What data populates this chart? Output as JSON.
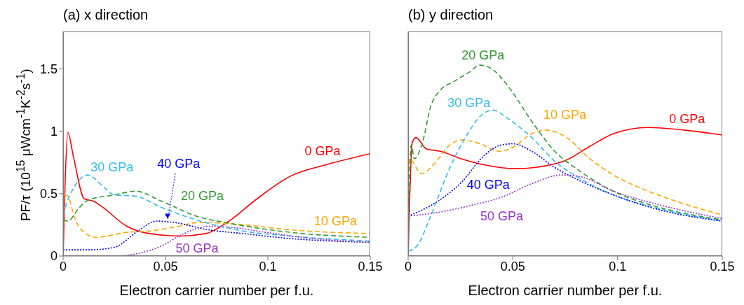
{
  "chart_data": [
    {
      "type": "line",
      "title": "(a) x direction",
      "xlabel": "Electron carrier number per f.u.",
      "ylabel": "PF/τ (10$^{15}$ μWcm$^{-1}$K$^{-2}$s$^{-1}$)",
      "xlim": [
        0,
        0.15
      ],
      "ylim": [
        0,
        1.8
      ],
      "xticks": [
        0,
        0.05,
        0.1,
        0.15
      ],
      "yticks": [
        0,
        0.5,
        1,
        1.5
      ],
      "marker": "none",
      "series": [
        {
          "name": "0 GPa",
          "color": "#ff0000",
          "line_style": "solid",
          "x": [
            0,
            0.001,
            0.0023,
            0.005,
            0.0103,
            0.0148,
            0.0194,
            0.031,
            0.042,
            0.057,
            0.0696,
            0.081,
            0.094,
            0.111,
            0.128,
            0.15
          ],
          "values": [
            0,
            0.6,
            0.99,
            0.8,
            0.46,
            0.44,
            0.39,
            0.24,
            0.18,
            0.16,
            0.18,
            0.28,
            0.45,
            0.64,
            0.73,
            0.82
          ]
        },
        {
          "name": "10 GPa",
          "color": "#ffa500",
          "line_style": "dashed",
          "x": [
            0,
            0.0005,
            0.0023,
            0.0057,
            0.0103,
            0.016,
            0.031,
            0.042,
            0.054,
            0.067,
            0.088,
            0.111,
            0.15
          ],
          "values": [
            0,
            0.49,
            0.48,
            0.3,
            0.19,
            0.15,
            0.19,
            0.2,
            0.23,
            0.27,
            0.25,
            0.21,
            0.18
          ]
        },
        {
          "name": "20 GPa",
          "color": "#339933",
          "line_style": "dashed",
          "x": [
            0,
            0.0023,
            0.008,
            0.0126,
            0.025,
            0.0354,
            0.048,
            0.065,
            0.082,
            0.111,
            0.15
          ],
          "values": [
            0.29,
            0.28,
            0.39,
            0.45,
            0.49,
            0.52,
            0.44,
            0.32,
            0.26,
            0.19,
            0.15
          ]
        },
        {
          "name": "30 GPa",
          "color": "#33bbee",
          "line_style": "dashed",
          "x": [
            0,
            0.0023,
            0.0057,
            0.012,
            0.0194,
            0.025,
            0.0354,
            0.048,
            0.065,
            0.088,
            0.111,
            0.15
          ],
          "values": [
            0.33,
            0.45,
            0.56,
            0.65,
            0.56,
            0.49,
            0.48,
            0.39,
            0.29,
            0.2,
            0.16,
            0.12
          ]
        },
        {
          "name": "40 GPa",
          "color": "#0000ee",
          "line_style": "dotted",
          "x": [
            0,
            0.0137,
            0.025,
            0.0365,
            0.0457,
            0.0537,
            0.071,
            0.088,
            0.111,
            0.15
          ],
          "values": [
            0.05,
            0.05,
            0.07,
            0.2,
            0.28,
            0.27,
            0.21,
            0.18,
            0.14,
            0.11
          ]
        },
        {
          "name": "50 GPa",
          "color": "#9933cc",
          "line_style": "dotted",
          "x": [
            0,
            0.025,
            0.0365,
            0.048,
            0.059,
            0.072,
            0.082,
            0.099,
            0.122,
            0.15
          ],
          "values": [
            0,
            0,
            0.02,
            0.08,
            0.18,
            0.24,
            0.23,
            0.19,
            0.14,
            0.11
          ]
        }
      ]
    },
    {
      "type": "line",
      "title": "(b) y direction",
      "xlabel": "Electron carrier number per f.u.",
      "xlim": [
        0,
        0.15
      ],
      "ylim": [
        0,
        1.8
      ],
      "xticks": [
        0,
        0.05,
        0.1,
        0.15
      ],
      "yticks": [
        0,
        0.5,
        1,
        1.5
      ],
      "tick_labels": "x",
      "marker": "none",
      "series": [
        {
          "name": "0 GPa",
          "color": "#ff0000",
          "line_style": "solid",
          "x": [
            0,
            0.002,
            0.0037,
            0.0087,
            0.0154,
            0.0254,
            0.0366,
            0.051,
            0.0645,
            0.0757,
            0.0868,
            0.098,
            0.1147,
            0.1315,
            0.15
          ],
          "values": [
            0,
            0.91,
            0.95,
            0.86,
            0.84,
            0.78,
            0.73,
            0.7,
            0.72,
            0.77,
            0.88,
            0.98,
            1.03,
            1.01,
            0.97
          ]
        },
        {
          "name": "10 GPa",
          "color": "#ffa500",
          "line_style": "dashed",
          "x": [
            0,
            0.0005,
            0.0065,
            0.012,
            0.02,
            0.0254,
            0.0344,
            0.0433,
            0.051,
            0.0578,
            0.0656,
            0.0757,
            0.0868,
            0.098,
            0.1147,
            0.1315,
            0.15
          ],
          "values": [
            0,
            0.78,
            0.66,
            0.73,
            0.89,
            0.93,
            0.9,
            0.84,
            0.88,
            0.97,
            1.01,
            0.95,
            0.78,
            0.65,
            0.52,
            0.42,
            0.33
          ]
        },
        {
          "name": "20 GPa",
          "color": "#339933",
          "line_style": "dashed",
          "x": [
            0,
            0.0015,
            0.003,
            0.0065,
            0.011,
            0.0154,
            0.022,
            0.0288,
            0.0344,
            0.04,
            0.0478,
            0.059,
            0.07,
            0.0812,
            0.098,
            0.12,
            0.15
          ],
          "values": [
            0,
            0.89,
            0.78,
            0.89,
            1.21,
            1.33,
            1.4,
            1.47,
            1.53,
            1.5,
            1.36,
            1.08,
            0.84,
            0.69,
            0.52,
            0.39,
            0.29
          ]
        },
        {
          "name": "30 GPa",
          "color": "#33bbee",
          "line_style": "dashed",
          "x": [
            0,
            0.0042,
            0.011,
            0.02,
            0.0288,
            0.0344,
            0.0405,
            0.0478,
            0.059,
            0.07,
            0.0812,
            0.098,
            0.12,
            0.15
          ],
          "values": [
            0.04,
            0.08,
            0.33,
            0.71,
            0.99,
            1.12,
            1.17,
            1.1,
            0.95,
            0.76,
            0.63,
            0.49,
            0.38,
            0.28
          ]
        },
        {
          "name": "40 GPa",
          "color": "#0000ee",
          "line_style": "dotted",
          "x": [
            0,
            0.0143,
            0.0254,
            0.0366,
            0.0444,
            0.05,
            0.059,
            0.07,
            0.0812,
            0.098,
            0.12,
            0.15
          ],
          "values": [
            0.32,
            0.44,
            0.59,
            0.81,
            0.89,
            0.9,
            0.84,
            0.71,
            0.61,
            0.49,
            0.37,
            0.28
          ]
        },
        {
          "name": "50 GPa",
          "color": "#9933cc",
          "line_style": "dotted",
          "x": [
            0,
            0.0143,
            0.031,
            0.0444,
            0.059,
            0.0734,
            0.0812,
            0.098,
            0.12,
            0.15
          ],
          "values": [
            0.32,
            0.35,
            0.41,
            0.47,
            0.58,
            0.65,
            0.64,
            0.52,
            0.41,
            0.3
          ]
        }
      ]
    }
  ]
}
